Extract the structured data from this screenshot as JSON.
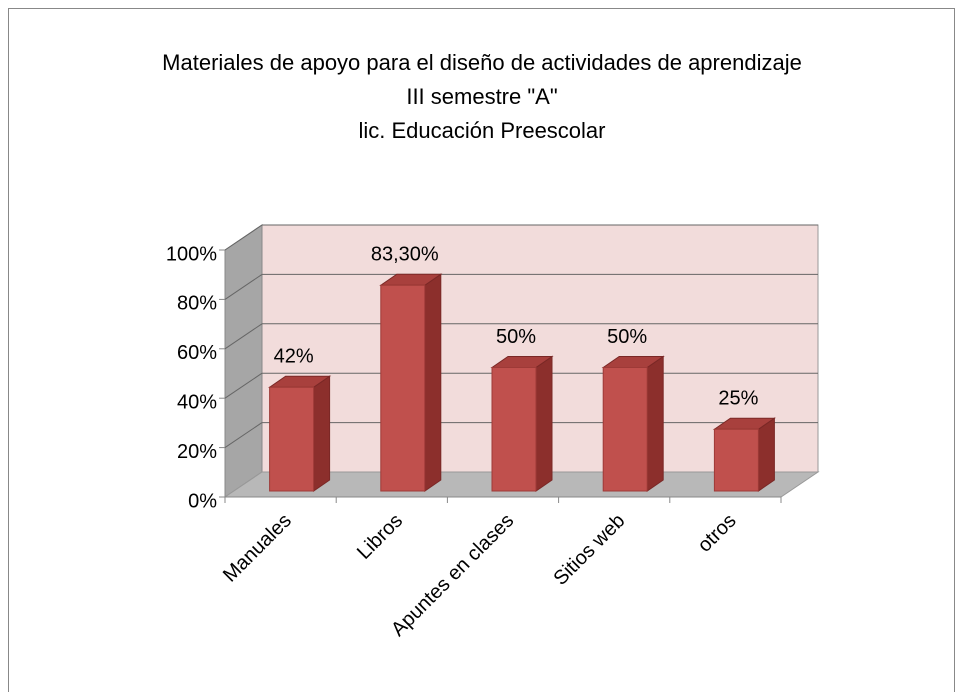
{
  "chart_data": {
    "type": "bar3d",
    "title": "Materiales de apoyo para el diseño de actividades de aprendizaje",
    "subtitle": [
      "III semestre \"A\"",
      "lic. Educación Preescolar"
    ],
    "categories": [
      "Manuales",
      "Libros",
      "Apuntes en clases",
      "Sitios web",
      "otros"
    ],
    "values": [
      42,
      83.3,
      50,
      50,
      25
    ],
    "value_labels": [
      "42%",
      "83,30%",
      "50%",
      "50%",
      "25%"
    ],
    "color": "#c0504d",
    "ylim": [
      0,
      100
    ],
    "yticks": [
      {
        "value": 0,
        "label": "0%"
      },
      {
        "value": 20,
        "label": "20%"
      },
      {
        "value": 40,
        "label": "40%"
      },
      {
        "value": 60,
        "label": "60%"
      },
      {
        "value": 80,
        "label": "80%"
      },
      {
        "value": 100,
        "label": "100%"
      }
    ],
    "grid": true
  }
}
